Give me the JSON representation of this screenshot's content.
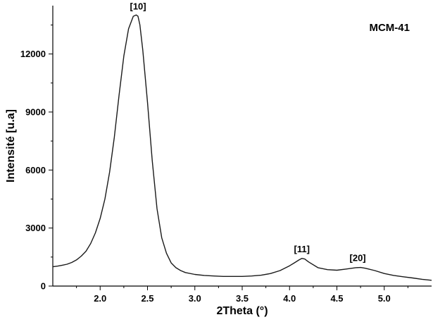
{
  "chart_data": {
    "type": "line",
    "title": "MCM-41",
    "xlabel": "2Theta (°)",
    "ylabel": "Intensité [u.a]",
    "xlim": [
      1.5,
      5.5
    ],
    "ylim": [
      0,
      14500
    ],
    "xticks": [
      "2.0",
      "2.5",
      "3.0",
      "3.5",
      "4.0",
      "4.5",
      "5.0"
    ],
    "yticks": [
      "0",
      "3000",
      "6000",
      "9000",
      "12000"
    ],
    "grid": false,
    "legend": "none",
    "annotations": [
      {
        "label": "[10]",
        "x": 2.4,
        "y": 14000
      },
      {
        "label": "[11]",
        "x": 4.13,
        "y": 1450
      },
      {
        "label": "[20]",
        "x": 4.72,
        "y": 1000
      }
    ],
    "series": [
      {
        "x": [
          1.5,
          1.55,
          1.6,
          1.65,
          1.7,
          1.75,
          1.8,
          1.85,
          1.9,
          1.95,
          2.0,
          2.05,
          2.1,
          2.15,
          2.2,
          2.25,
          2.3,
          2.35,
          2.38,
          2.4,
          2.42,
          2.45,
          2.5,
          2.55,
          2.6,
          2.65,
          2.7,
          2.75,
          2.8,
          2.85,
          2.9,
          3.0,
          3.1,
          3.2,
          3.3,
          3.4,
          3.5,
          3.6,
          3.7,
          3.8,
          3.9,
          4.0,
          4.05,
          4.1,
          4.13,
          4.16,
          4.2,
          4.3,
          4.4,
          4.5,
          4.6,
          4.7,
          4.75,
          4.8,
          4.9,
          5.0,
          5.1,
          5.2,
          5.3,
          5.4,
          5.5
        ],
        "values": [
          1000,
          1030,
          1080,
          1130,
          1220,
          1350,
          1550,
          1800,
          2200,
          2750,
          3500,
          4500,
          5900,
          7700,
          9900,
          11900,
          13300,
          13950,
          14020,
          13950,
          13500,
          12200,
          9500,
          6500,
          4000,
          2500,
          1700,
          1200,
          950,
          800,
          700,
          600,
          550,
          520,
          500,
          500,
          500,
          520,
          560,
          650,
          800,
          1050,
          1200,
          1350,
          1430,
          1400,
          1250,
          950,
          850,
          820,
          880,
          950,
          960,
          920,
          800,
          650,
          550,
          480,
          420,
          350,
          300
        ]
      }
    ]
  }
}
